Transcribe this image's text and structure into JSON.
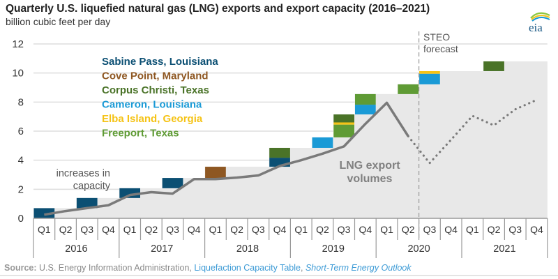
{
  "chart_data": {
    "type": "bar",
    "title": "Quarterly U.S. liquefied natural gas (LNG) exports and export capacity (2016–2021)",
    "ylabel": "billion cubic feet per day",
    "xlabel": "",
    "ylim": [
      0,
      12
    ],
    "yticks": [
      0,
      2,
      4,
      6,
      8,
      10,
      12
    ],
    "grid": true,
    "years": [
      "2016",
      "2017",
      "2018",
      "2019",
      "2020",
      "2021"
    ],
    "quarter_labels": [
      "Q1",
      "Q2",
      "Q3",
      "Q4"
    ],
    "categories": [
      "2016 Q1",
      "2016 Q2",
      "2016 Q3",
      "2016 Q4",
      "2017 Q1",
      "2017 Q2",
      "2017 Q3",
      "2017 Q4",
      "2018 Q1",
      "2018 Q2",
      "2018 Q3",
      "2018 Q4",
      "2019 Q1",
      "2019 Q2",
      "2019 Q3",
      "2019 Q4",
      "2020 Q1",
      "2020 Q2",
      "2020 Q3",
      "2020 Q4",
      "2021 Q1",
      "2021 Q2",
      "2021 Q3",
      "2021 Q4"
    ],
    "legend": [
      {
        "name": "Sabine Pass, Louisiana",
        "color": "#0b4f73"
      },
      {
        "name": "Cove Point, Maryland",
        "color": "#8e5722"
      },
      {
        "name": "Corpus Christi, Texas",
        "color": "#4a7328"
      },
      {
        "name": "Cameron, Louisiana",
        "color": "#1a9ad6"
      },
      {
        "name": "Elba Island, Georgia",
        "color": "#f5c316"
      },
      {
        "name": "Freeport, Texas",
        "color": "#5f9b35"
      }
    ],
    "legend_position": "top-left",
    "capacity_additions": [
      {
        "quarter": 0,
        "facility": "Sabine Pass, Louisiana",
        "from": 0.0,
        "to": 0.7
      },
      {
        "quarter": 2,
        "facility": "Sabine Pass, Louisiana",
        "from": 0.7,
        "to": 1.4
      },
      {
        "quarter": 4,
        "facility": "Sabine Pass, Louisiana",
        "from": 1.4,
        "to": 2.07
      },
      {
        "quarter": 6,
        "facility": "Sabine Pass, Louisiana",
        "from": 2.07,
        "to": 2.78
      },
      {
        "quarter": 8,
        "facility": "Cove Point, Maryland",
        "from": 2.78,
        "to": 3.55
      },
      {
        "quarter": 11,
        "facility": "Sabine Pass, Louisiana",
        "from": 3.55,
        "to": 4.17
      },
      {
        "quarter": 11,
        "facility": "Corpus Christi, Texas",
        "from": 4.17,
        "to": 4.85
      },
      {
        "quarter": 13,
        "facility": "Cameron, Louisiana",
        "from": 4.85,
        "to": 5.57
      },
      {
        "quarter": 14,
        "facility": "Freeport, Texas",
        "from": 5.57,
        "to": 6.45
      },
      {
        "quarter": 14,
        "facility": "Elba Island, Georgia",
        "from": 6.45,
        "to": 6.6
      },
      {
        "quarter": 14,
        "facility": "Corpus Christi, Texas",
        "from": 6.6,
        "to": 7.15
      },
      {
        "quarter": 15,
        "facility": "Cameron, Louisiana",
        "from": 7.15,
        "to": 7.82
      },
      {
        "quarter": 15,
        "facility": "Freeport, Texas",
        "from": 7.82,
        "to": 8.55
      },
      {
        "quarter": 17,
        "facility": "Freeport, Texas",
        "from": 8.55,
        "to": 9.22
      },
      {
        "quarter": 18,
        "facility": "Cameron, Louisiana",
        "from": 9.22,
        "to": 9.95
      },
      {
        "quarter": 18,
        "facility": "Elba Island, Georgia",
        "from": 9.95,
        "to": 10.13
      },
      {
        "quarter": 21,
        "facility": "Corpus Christi, Texas",
        "from": 10.13,
        "to": 10.8
      }
    ],
    "series": [
      {
        "name": "LNG export volumes (historical)",
        "values": [
          0.25,
          0.5,
          0.7,
          0.9,
          1.6,
          1.8,
          1.7,
          2.7,
          2.7,
          2.8,
          2.95,
          3.6,
          4.0,
          4.45,
          4.95,
          6.5,
          7.95,
          5.65,
          null,
          null,
          null,
          null,
          null,
          null
        ]
      },
      {
        "name": "LNG export volumes (STEO forecast)",
        "values": [
          null,
          null,
          null,
          null,
          null,
          null,
          null,
          null,
          null,
          null,
          null,
          null,
          null,
          null,
          null,
          null,
          null,
          5.65,
          3.8,
          5.4,
          7.05,
          6.4,
          7.5,
          8.15
        ]
      }
    ],
    "forecast_start_index": 18,
    "annotations": {
      "capacity_note_line1": "increases in",
      "capacity_note_line2": "capacity",
      "volumes_line1": "LNG export",
      "volumes_line2": "volumes",
      "forecast_line1": "STEO",
      "forecast_line2": "forecast"
    }
  },
  "header": {
    "title": "Quarterly U.S. liquefied natural gas (LNG) exports and export capacity (2016–2021)",
    "subtitle": "billion cubic feet per day",
    "logo_text": "eia"
  },
  "footer": {
    "source_label": "Source:",
    "source_text": " U.S. Energy Information Administration, ",
    "link1": "Liquefaction Capacity Table",
    "sep": ", ",
    "link2": "Short-Term Energy Outlook"
  },
  "colors": {
    "capacity_area": "#e8e8e8",
    "line": "#7a7a7a",
    "grid": "#dddddd",
    "axis": "#999999"
  }
}
